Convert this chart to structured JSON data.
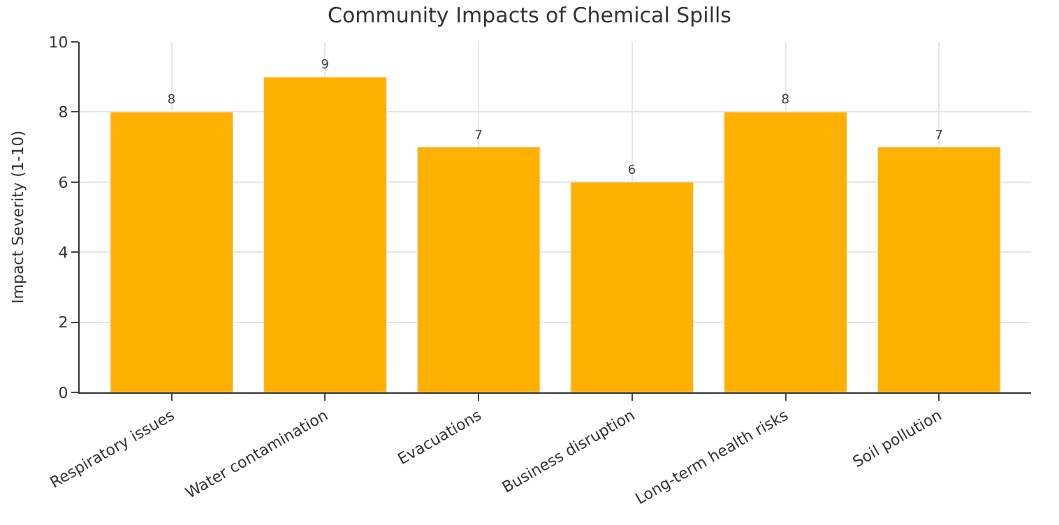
{
  "chart_data": {
    "type": "bar",
    "title": "Community Impacts of Chemical Spills",
    "ylabel": "Impact Severity (1-10)",
    "categories": [
      "Respiratory issues",
      "Water contamination",
      "Evacuations",
      "Business disruption",
      "Long-term health risks",
      "Soil pollution"
    ],
    "values": [
      8,
      9,
      7,
      6,
      8,
      7
    ],
    "color": "#ffb000",
    "ylim": [
      0,
      10
    ],
    "yticks": [
      0,
      2,
      4,
      6,
      8,
      10
    ],
    "grid": true,
    "data_labels": true
  }
}
